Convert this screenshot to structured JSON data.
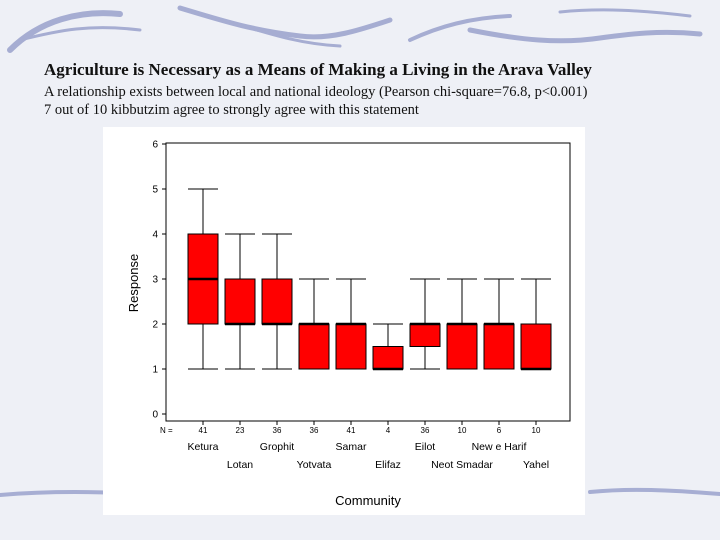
{
  "slide": {
    "title": "Agriculture is Necessary as a Means of Making a Living in the Arava Valley",
    "subtitle_line1": "A relationship exists between local and national ideology (Pearson chi-square=76.8, p<0.001)",
    "subtitle_line2": "7 out of 10 kibbutzim agree to strongly agree with this statement"
  },
  "colors": {
    "box_fill": "#ff0000",
    "median": "#000000",
    "background": "#eef0f6",
    "decoration": "#8e96c4"
  },
  "chart_data": {
    "type": "boxplot",
    "xlabel": "Community",
    "ylabel": "Response",
    "ylim": [
      0,
      6
    ],
    "yticks": [
      0,
      1,
      2,
      3,
      4,
      5,
      6
    ],
    "n_label": "N =",
    "grid": false,
    "categories": [
      "Ketura",
      "Lotan",
      "Grophit",
      "Yotvata",
      "Samar",
      "Elifaz",
      "Eilot",
      "Neot Smadar",
      "New e Harif",
      "Yahel"
    ],
    "n": [
      41,
      23,
      36,
      36,
      41,
      4,
      36,
      10,
      6,
      10
    ],
    "boxes": [
      {
        "min": 1,
        "q1": 2,
        "median": 3,
        "q3": 4,
        "max": 5
      },
      {
        "min": 1,
        "q1": 2,
        "median": 2,
        "q3": 3,
        "max": 4
      },
      {
        "min": 1,
        "q1": 2,
        "median": 2,
        "q3": 3,
        "max": 4
      },
      {
        "min": 1,
        "q1": 1,
        "median": 2,
        "q3": 2,
        "max": 3
      },
      {
        "min": 1,
        "q1": 1,
        "median": 2,
        "q3": 2,
        "max": 3
      },
      {
        "min": 1,
        "q1": 1,
        "median": 1,
        "q3": 1.5,
        "max": 2
      },
      {
        "min": 1,
        "q1": 1.5,
        "median": 2,
        "q3": 2,
        "max": 3
      },
      {
        "min": 1,
        "q1": 1,
        "median": 2,
        "q3": 2,
        "max": 3
      },
      {
        "min": 1,
        "q1": 1,
        "median": 2,
        "q3": 2,
        "max": 3
      },
      {
        "min": 1,
        "q1": 1,
        "median": 1,
        "q3": 2,
        "max": 3
      }
    ]
  }
}
